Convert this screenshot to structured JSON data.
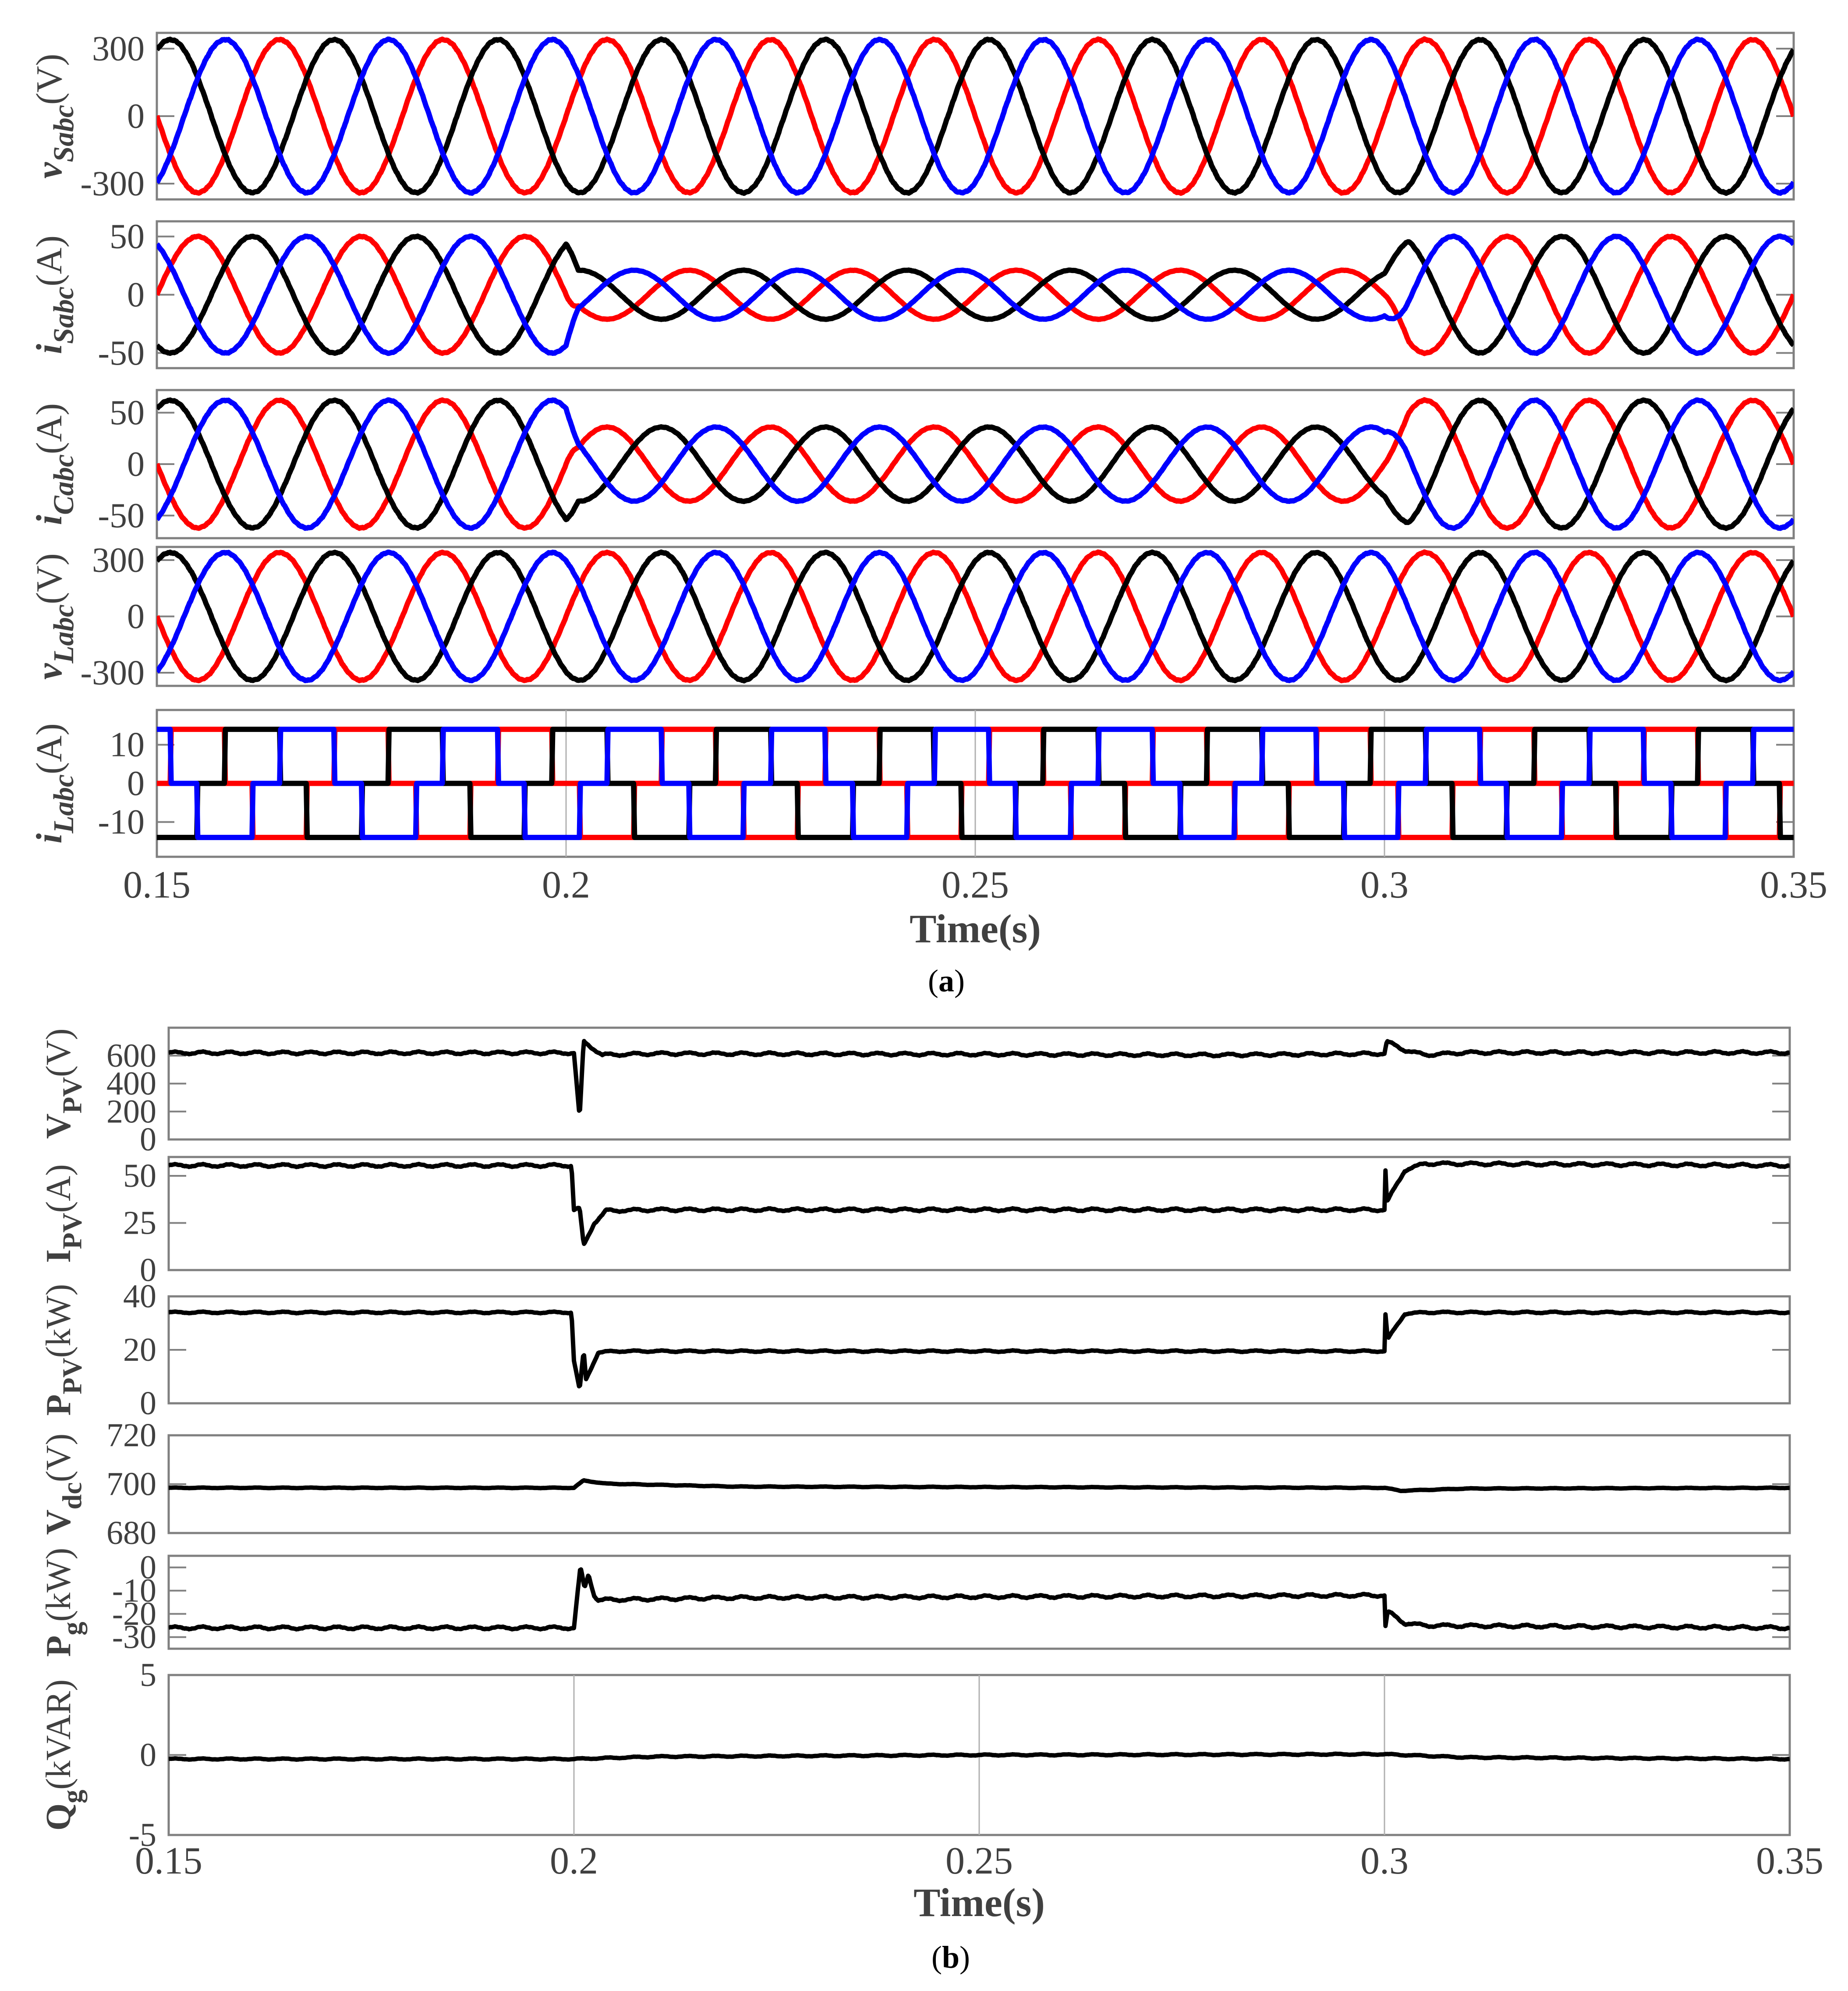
{
  "figure": {
    "part_a": {
      "caption_open": "(",
      "caption_letter": "a",
      "caption_close": ")",
      "xlabel": "Time(s)",
      "xticks": [
        "0.15",
        "0.2",
        "0.25",
        "0.3",
        "0.35"
      ]
    },
    "part_b": {
      "caption_open": "(",
      "caption_letter": "b",
      "caption_close": ")",
      "xlabel": "Time(s)",
      "xticks": [
        "0.15",
        "0.2",
        "0.25",
        "0.3",
        "0.35"
      ]
    }
  },
  "colors": {
    "phase_a": "#ff0000",
    "phase_b": "#000000",
    "phase_c": "#0000ff",
    "axis": "#808080",
    "text": "#404040"
  },
  "chart_data": [
    {
      "id": "vSabc",
      "type": "line",
      "part": "a",
      "ylabel_main": "v",
      "ylabel_sub": "Sabc",
      "ylabel_unit": "(V)",
      "yticks": [
        "300",
        "0",
        "-300"
      ],
      "ytick_values": [
        300,
        0,
        -300
      ],
      "ylim": [
        -370,
        370
      ],
      "xlim": [
        0.15,
        0.35
      ],
      "series": [
        {
          "name": "phase a",
          "color": "#ff0000",
          "kind": "sine",
          "amp_before": 340,
          "amp_mid": 340,
          "amp_after": 340,
          "phase_deg": 180
        },
        {
          "name": "phase b",
          "color": "#000000",
          "kind": "sine",
          "amp_before": 340,
          "amp_mid": 340,
          "amp_after": 340,
          "phase_deg": 60
        },
        {
          "name": "phase c",
          "color": "#0000ff",
          "kind": "sine",
          "amp_before": 340,
          "amp_mid": 340,
          "amp_after": 340,
          "phase_deg": -60
        }
      ],
      "frequency_hz": 50,
      "events": [
        0.2,
        0.3
      ]
    },
    {
      "id": "iSabc",
      "type": "line",
      "part": "a",
      "ylabel_main": "i",
      "ylabel_sub": "Sabc",
      "ylabel_unit": "(A)",
      "yticks": [
        "50",
        "0",
        "-50"
      ],
      "ytick_values": [
        50,
        0,
        -50
      ],
      "ylim": [
        -63,
        63
      ],
      "xlim": [
        0.15,
        0.35
      ],
      "series": [
        {
          "name": "phase a",
          "color": "#ff0000",
          "kind": "sine",
          "amp_before": 50,
          "amp_mid": 21,
          "amp_after": 50,
          "phase_deg": 0
        },
        {
          "name": "phase b",
          "color": "#000000",
          "kind": "sine",
          "amp_before": 50,
          "amp_mid": 21,
          "amp_after": 50,
          "phase_deg": -120
        },
        {
          "name": "phase c",
          "color": "#0000ff",
          "kind": "sine",
          "amp_before": 50,
          "amp_mid": 21,
          "amp_after": 50,
          "phase_deg": 120
        }
      ],
      "frequency_hz": 50,
      "events": [
        0.2,
        0.3
      ]
    },
    {
      "id": "iCabc",
      "type": "line",
      "part": "a",
      "ylabel_main": "i",
      "ylabel_sub": "Cabc",
      "ylabel_unit": "(A)",
      "yticks": [
        "50",
        "0",
        "-50"
      ],
      "ytick_values": [
        50,
        0,
        -50
      ],
      "ylim": [
        -72,
        72
      ],
      "xlim": [
        0.15,
        0.35
      ],
      "series": [
        {
          "name": "phase a",
          "color": "#ff0000",
          "kind": "sine",
          "amp_before": 62,
          "amp_mid": 36,
          "amp_after": 62,
          "phase_deg": 180
        },
        {
          "name": "phase b",
          "color": "#000000",
          "kind": "sine",
          "amp_before": 62,
          "amp_mid": 36,
          "amp_after": 62,
          "phase_deg": 60
        },
        {
          "name": "phase c",
          "color": "#0000ff",
          "kind": "sine",
          "amp_before": 62,
          "amp_mid": 36,
          "amp_after": 62,
          "phase_deg": -60
        }
      ],
      "frequency_hz": 50,
      "events": [
        0.2,
        0.3
      ]
    },
    {
      "id": "vLabc",
      "type": "line",
      "part": "a",
      "ylabel_main": "v",
      "ylabel_sub": "Labc",
      "ylabel_unit": "(V)",
      "yticks": [
        "300",
        "0",
        "-300"
      ],
      "ytick_values": [
        300,
        0,
        -300
      ],
      "ylim": [
        -370,
        370
      ],
      "xlim": [
        0.15,
        0.35
      ],
      "series": [
        {
          "name": "phase a",
          "color": "#ff0000",
          "kind": "sine",
          "amp_before": 340,
          "amp_mid": 340,
          "amp_after": 340,
          "phase_deg": 180
        },
        {
          "name": "phase b",
          "color": "#000000",
          "kind": "sine",
          "amp_before": 340,
          "amp_mid": 340,
          "amp_after": 340,
          "phase_deg": 60
        },
        {
          "name": "phase c",
          "color": "#0000ff",
          "kind": "sine",
          "amp_before": 340,
          "amp_mid": 340,
          "amp_after": 340,
          "phase_deg": -60
        }
      ],
      "frequency_hz": 50,
      "events": [
        0.2,
        0.3
      ]
    },
    {
      "id": "iLabc",
      "type": "line",
      "part": "a",
      "ylabel_main": "i",
      "ylabel_sub": "Labc",
      "ylabel_unit": "(A)",
      "yticks": [
        "10",
        "0",
        "-10"
      ],
      "ytick_values": [
        10,
        0,
        -10
      ],
      "ylim": [
        -19,
        19
      ],
      "xlim": [
        0.15,
        0.35
      ],
      "series": [
        {
          "name": "phase a",
          "color": "#ff0000",
          "kind": "six_step",
          "amp": 14,
          "phase_deg": 0
        },
        {
          "name": "phase b",
          "color": "#000000",
          "kind": "six_step",
          "amp": 14,
          "phase_deg": -120
        },
        {
          "name": "phase c",
          "color": "#0000ff",
          "kind": "six_step",
          "amp": 14,
          "phase_deg": 120
        }
      ],
      "frequency_hz": 50,
      "grid_x": [
        0.2,
        0.25,
        0.3
      ]
    },
    {
      "id": "VPV",
      "type": "line",
      "part": "b",
      "ylabel_main": "V",
      "ylabel_sub": "PV",
      "ylabel_unit": "(V)",
      "yticks": [
        "600",
        "400",
        "200",
        "0"
      ],
      "ytick_values": [
        600,
        400,
        200,
        0
      ],
      "ylim": [
        0,
        800
      ],
      "xlim": [
        0.15,
        0.35
      ],
      "series": [
        {
          "name": "V_PV",
          "color": "#000000",
          "kind": "dc",
          "points": [
            [
              0.15,
              620
            ],
            [
              0.2,
              620
            ],
            [
              0.2007,
              150
            ],
            [
              0.2012,
              700
            ],
            [
              0.2035,
              605
            ],
            [
              0.21,
              615
            ],
            [
              0.25,
              610
            ],
            [
              0.28,
              605
            ],
            [
              0.295,
              612
            ],
            [
              0.3,
              615
            ],
            [
              0.3003,
              700
            ],
            [
              0.3025,
              640
            ],
            [
              0.305,
              605
            ],
            [
              0.31,
              622
            ],
            [
              0.35,
              622
            ]
          ],
          "ripple": 8
        }
      ]
    },
    {
      "id": "IPV",
      "type": "line",
      "part": "b",
      "ylabel_main": "I",
      "ylabel_sub": "PV",
      "ylabel_unit": "(A)",
      "yticks": [
        "50",
        "25",
        "0"
      ],
      "ytick_values": [
        50,
        25,
        0
      ],
      "ylim": [
        0,
        60
      ],
      "xlim": [
        0.15,
        0.35
      ],
      "series": [
        {
          "name": "I_PV",
          "color": "#000000",
          "kind": "dc",
          "points": [
            [
              0.15,
              55.5
            ],
            [
              0.1997,
              55.5
            ],
            [
              0.2,
              32
            ],
            [
              0.2007,
              32.5
            ],
            [
              0.2012,
              13
            ],
            [
              0.2025,
              25
            ],
            [
              0.204,
              31.5
            ],
            [
              0.21,
              32
            ],
            [
              0.3,
              32
            ],
            [
              0.3001,
              55
            ],
            [
              0.3003,
              36
            ],
            [
              0.3025,
              53
            ],
            [
              0.305,
              56.5
            ],
            [
              0.35,
              55.5
            ]
          ],
          "ripple": 0.6
        }
      ]
    },
    {
      "id": "PPV",
      "type": "line",
      "part": "b",
      "ylabel_main": "P",
      "ylabel_sub": "PV",
      "ylabel_unit": "(kW)",
      "yticks": [
        "40",
        "20",
        "0"
      ],
      "ytick_values": [
        40,
        20,
        0
      ],
      "ylim": [
        0,
        40
      ],
      "xlim": [
        0.15,
        0.35
      ],
      "series": [
        {
          "name": "P_PV",
          "color": "#000000",
          "kind": "dc",
          "points": [
            [
              0.15,
              34
            ],
            [
              0.1997,
              34
            ],
            [
              0.2,
              16
            ],
            [
              0.2007,
              5
            ],
            [
              0.2012,
              19.5
            ],
            [
              0.2015,
              9
            ],
            [
              0.203,
              19
            ],
            [
              0.205,
              19.5
            ],
            [
              0.3,
              19.5
            ],
            [
              0.3001,
              34
            ],
            [
              0.3004,
              24
            ],
            [
              0.3025,
              33.5
            ],
            [
              0.305,
              34
            ],
            [
              0.35,
              34
            ]
          ],
          "ripple": 0.25
        }
      ]
    },
    {
      "id": "Vdc",
      "type": "line",
      "part": "b",
      "ylabel_main": "V",
      "ylabel_sub": "dc",
      "ylabel_unit": "(V)",
      "yticks": [
        "720",
        "700",
        "680"
      ],
      "ytick_values": [
        720,
        700,
        680
      ],
      "ylim": [
        680,
        720
      ],
      "xlim": [
        0.15,
        0.35
      ],
      "series": [
        {
          "name": "V_dc",
          "color": "#000000",
          "kind": "dc",
          "points": [
            [
              0.15,
              698.5
            ],
            [
              0.2,
              698.5
            ],
            [
              0.2012,
              701.5
            ],
            [
              0.204,
              700.2
            ],
            [
              0.22,
              699
            ],
            [
              0.3,
              698.5
            ],
            [
              0.302,
              697.3
            ],
            [
              0.31,
              698.2
            ],
            [
              0.35,
              698.5
            ]
          ],
          "ripple": 0.1
        }
      ]
    },
    {
      "id": "Pg",
      "type": "line",
      "part": "b",
      "ylabel_main": "P",
      "ylabel_sub": "g",
      "ylabel_unit": "(kW)",
      "yticks": [
        "0",
        "-10",
        "-20",
        "-30"
      ],
      "ytick_values": [
        0,
        -10,
        -20,
        -30
      ],
      "ylim": [
        -35,
        5
      ],
      "xlim": [
        0.15,
        0.35
      ],
      "series": [
        {
          "name": "P_g",
          "color": "#000000",
          "kind": "dc",
          "points": [
            [
              0.15,
              -26
            ],
            [
              0.2,
              -26
            ],
            [
              0.2008,
              0
            ],
            [
              0.2013,
              -9
            ],
            [
              0.2018,
              -3
            ],
            [
              0.2025,
              -12
            ],
            [
              0.203,
              -14
            ],
            [
              0.22,
              -13
            ],
            [
              0.3,
              -12
            ],
            [
              0.3001,
              -26
            ],
            [
              0.3004,
              -19
            ],
            [
              0.3025,
              -24
            ],
            [
              0.305,
              -25
            ],
            [
              0.35,
              -26
            ]
          ],
          "ripple": 0.5
        }
      ]
    },
    {
      "id": "Qg",
      "type": "line",
      "part": "b",
      "ylabel_main": "Q",
      "ylabel_sub": "g",
      "ylabel_unit": "(kVAR)",
      "yticks": [
        "5",
        "0",
        "-5"
      ],
      "ytick_values": [
        5,
        0,
        -5
      ],
      "ylim": [
        -5,
        5
      ],
      "xlim": [
        0.15,
        0.35
      ],
      "series": [
        {
          "name": "Q_g",
          "color": "#000000",
          "kind": "dc",
          "points": [
            [
              0.15,
              -0.25
            ],
            [
              0.2,
              -0.25
            ],
            [
              0.21,
              -0.1
            ],
            [
              0.25,
              0
            ],
            [
              0.3,
              0.05
            ],
            [
              0.31,
              -0.15
            ],
            [
              0.35,
              -0.25
            ]
          ],
          "ripple": 0.03
        }
      ],
      "grid_x": [
        0.2,
        0.25,
        0.3
      ]
    }
  ]
}
